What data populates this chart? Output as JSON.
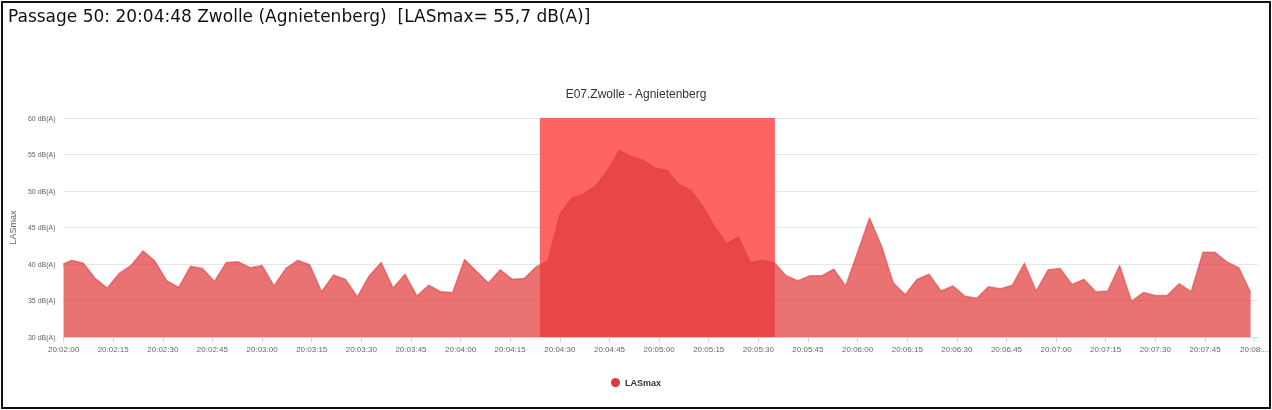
{
  "chart_data": {
    "type": "area",
    "title": "Passage 50: 20:04:48 Zwolle (Agnietenberg)  [LASmax= 55,7 dB(A)]",
    "subtitle": "E07.Zwolle - Agnietenberg",
    "ylabel": "LASmax",
    "x": [
      20.03333,
      20.034,
      20.035,
      20.036,
      20.037,
      20.038,
      20.039,
      20.04,
      20.041,
      20.042,
      20.043,
      20.044,
      20.045,
      20.046,
      20.047,
      20.048,
      20.049,
      20.05,
      20.051,
      20.052,
      20.053,
      20.054,
      20.055,
      20.056,
      20.057,
      20.058,
      20.059,
      20.06,
      20.061,
      20.062,
      20.063,
      20.064,
      20.065,
      20.066,
      20.067,
      20.068,
      20.069,
      20.07,
      20.071,
      20.072,
      20.073,
      20.074,
      20.075,
      20.076,
      20.077,
      20.078,
      20.079,
      20.08,
      20.081,
      20.082,
      20.083,
      20.084,
      20.085,
      20.086,
      20.087,
      20.088,
      20.089,
      20.09,
      20.091,
      20.092,
      20.093,
      20.094,
      20.095,
      20.096,
      20.097,
      20.098,
      20.099,
      20.1,
      20.101,
      20.102,
      20.103,
      20.104,
      20.105,
      20.106,
      20.107,
      20.108,
      20.109,
      20.11,
      20.111,
      20.112,
      20.113,
      20.114,
      20.115,
      20.116,
      20.117,
      20.118,
      20.119,
      20.12,
      20.121,
      20.122,
      20.123,
      20.124,
      20.125,
      20.126,
      20.127,
      20.128,
      20.129,
      20.13,
      20.131,
      20.132,
      20.133
    ],
    "series": [
      {
        "name": "LASmax",
        "color": "#e03c3c",
        "values": [
          40,
          40.5,
          40.1,
          38,
          36.7,
          38.7,
          39.8,
          41.8,
          40.4,
          37.7,
          36.8,
          39.7,
          39.4,
          37.6,
          40.2,
          40.3,
          39.5,
          39.8,
          37,
          39.4,
          40.5,
          39.9,
          36.2,
          38.5,
          37.9,
          35.5,
          38.4,
          40.2,
          36.7,
          38.6,
          35.6,
          37.1,
          36.2,
          36.1,
          40.6,
          39,
          37.4,
          39.2,
          37.9,
          38,
          39.6,
          40.4,
          46.8,
          49,
          49.6,
          50.7,
          52.8,
          55.6,
          54.7,
          54.2,
          53.2,
          52.8,
          50.9,
          50.1,
          47.9,
          45.1,
          42.8,
          43.7,
          40.2,
          40.5,
          40.2,
          38.4,
          37.7,
          38.4,
          38.4,
          39.3,
          37,
          41.6,
          46.3,
          42.5,
          37.4,
          35.8,
          37.9,
          38.6,
          36.3,
          37,
          35.6,
          35.3,
          36.9,
          36.6,
          37.1,
          40.1,
          36.3,
          39.2,
          39.4,
          37.2,
          37.9,
          36.2,
          36.3,
          39.8,
          34.9,
          36.1,
          35.7,
          35.7,
          37.3,
          36.2,
          41.6,
          41.6,
          40.3,
          39.5,
          36.1
        ]
      }
    ],
    "xlim": [
      20.03333,
      20.13361
    ],
    "xticks": [
      {
        "value": 20.03333,
        "label": "20:02:00"
      },
      {
        "value": 20.0375,
        "label": "20:02:15"
      },
      {
        "value": 20.04167,
        "label": "20:02:30"
      },
      {
        "value": 20.04583,
        "label": "20:02:45"
      },
      {
        "value": 20.05,
        "label": "20:03:00"
      },
      {
        "value": 20.05417,
        "label": "20:03:15"
      },
      {
        "value": 20.05833,
        "label": "20:03:30"
      },
      {
        "value": 20.0625,
        "label": "20:03:45"
      },
      {
        "value": 20.06667,
        "label": "20:04:00"
      },
      {
        "value": 20.07083,
        "label": "20:04:15"
      },
      {
        "value": 20.075,
        "label": "20:04:30"
      },
      {
        "value": 20.07917,
        "label": "20:04:45"
      },
      {
        "value": 20.08333,
        "label": "20:05:00"
      },
      {
        "value": 20.0875,
        "label": "20:05:15"
      },
      {
        "value": 20.09167,
        "label": "20:05:30"
      },
      {
        "value": 20.09583,
        "label": "20:05:45"
      },
      {
        "value": 20.1,
        "label": "20:06:00"
      },
      {
        "value": 20.10417,
        "label": "20:06:15"
      },
      {
        "value": 20.10833,
        "label": "20:06:30"
      },
      {
        "value": 20.1125,
        "label": "20:06:45"
      },
      {
        "value": 20.11667,
        "label": "20:07:00"
      },
      {
        "value": 20.12083,
        "label": "20:07:15"
      },
      {
        "value": 20.125,
        "label": "20:07:30"
      },
      {
        "value": 20.12917,
        "label": "20:07:45"
      },
      {
        "value": 20.13333,
        "label": "20:08:..."
      }
    ],
    "ylim": [
      30,
      60
    ],
    "yticks": [
      {
        "value": 30,
        "label": "30 dB(A)"
      },
      {
        "value": 35,
        "label": "35 dB(A)"
      },
      {
        "value": 40,
        "label": "40 dB(A)"
      },
      {
        "value": 45,
        "label": "45 dB(A)"
      },
      {
        "value": 50,
        "label": "50 dB(A)"
      },
      {
        "value": 55,
        "label": "55 dB(A)"
      },
      {
        "value": 60,
        "label": "60 dB(A)"
      }
    ],
    "bands": [
      {
        "axis": "x",
        "from": 20.07333,
        "to": 20.09306,
        "color": "#ff6464"
      }
    ],
    "grid": "y",
    "legend": "bottom",
    "marker": "none"
  }
}
